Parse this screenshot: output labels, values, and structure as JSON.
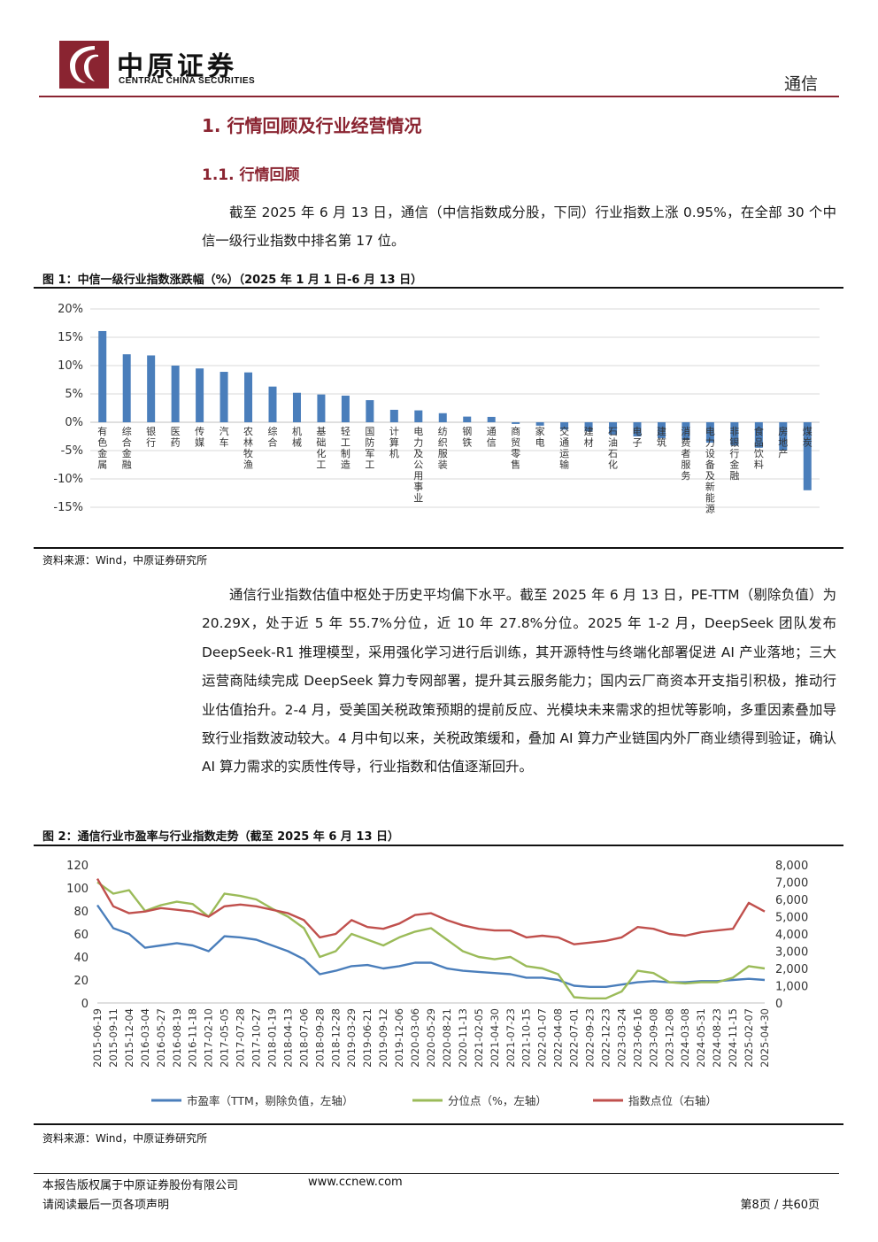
{
  "header": {
    "brand_cn": "中原证券",
    "brand_en": "CENTRAL CHINA SECURITIES",
    "section": "通信",
    "accent_color": "#8a2431"
  },
  "heading1": "1. 行情回顾及行业经营情况",
  "heading2": "1.1. 行情回顾",
  "paragraph1": "截至 2025 年 6 月 13 日，通信（中信指数成分股，下同）行业指数上涨 0.95%，在全部 30 个中信一级行业指数中排名第 17 位。",
  "figure1": {
    "title": "图 1：中信一级行业指数涨跌幅（%）（2025 年 1 月 1 日-6 月 13 日）",
    "source": "资料来源：Wind，中原证券研究所"
  },
  "paragraph2": "通信行业指数估值中枢处于历史平均偏下水平。截至 2025 年 6 月 13 日，PE-TTM（剔除负值）为 20.29X，处于近 5 年 55.7%分位，近 10 年 27.8%分位。2025 年 1-2 月，DeepSeek 团队发布 DeepSeek-R1 推理模型，采用强化学习进行后训练，其开源特性与终端化部署促进 AI 产业落地；三大运营商陆续完成 DeepSeek 算力专网部署，提升其云服务能力；国内云厂商资本开支指引积极，推动行业估值抬升。2-4 月，受美国关税政策预期的提前反应、光模块未来需求的担忧等影响，多重因素叠加导致行业指数波动较大。4 月中旬以来，关税政策缓和，叠加 AI 算力产业链国内外厂商业绩得到验证，确认 AI 算力需求的实质性传导，行业指数和估值逐渐回升。",
  "figure2": {
    "title": "图 2：通信行业市盈率与行业指数走势（截至 2025 年 6 月 13 日）",
    "source": "资料来源：Wind，中原证券研究所"
  },
  "footer": {
    "copyright": "本报告版权属于中原证券股份有限公司",
    "website": "www.ccnew.com",
    "disclaimer": "请阅读最后一页各项声明",
    "page": "第8页  /  共60页"
  },
  "chart_data": [
    {
      "type": "bar",
      "ylim": [
        -15,
        20
      ],
      "yticks": [
        "20%",
        "15%",
        "10%",
        "5%",
        "0%",
        "-5%",
        "-10%",
        "-15%"
      ],
      "grid": true,
      "bar_color": "#4a7ebb",
      "categories": [
        "有色金属",
        "综合金融",
        "银行",
        "医药",
        "传媒",
        "汽车",
        "农林牧渔",
        "综合",
        "机械",
        "基础化工",
        "轻工制造",
        "国防军工",
        "计算机",
        "电力及公用事业",
        "纺织服装",
        "钢铁",
        "通信",
        "商贸零售",
        "家电",
        "交通运输",
        "建材",
        "石油石化",
        "电子",
        "建筑",
        "消费者服务",
        "电力设备及新能源",
        "非银行金融",
        "食品饮料",
        "房地产",
        "煤炭"
      ],
      "values": [
        16.1,
        12.0,
        11.8,
        10.0,
        9.5,
        8.9,
        8.8,
        6.3,
        5.2,
        4.9,
        4.7,
        3.9,
        2.2,
        2.1,
        1.6,
        1.0,
        0.95,
        -0.3,
        -0.6,
        -1.3,
        -1.6,
        -2.2,
        -2.5,
        -2.8,
        -3.1,
        -3.6,
        -4.1,
        -4.5,
        -5.0,
        -12.0
      ]
    },
    {
      "type": "line",
      "ylim_left": [
        0,
        120
      ],
      "yticks_left": [
        "0",
        "20",
        "40",
        "60",
        "80",
        "100",
        "120"
      ],
      "ylim_right": [
        0,
        8000
      ],
      "yticks_right": [
        "0",
        "1,000",
        "2,000",
        "3,000",
        "4,000",
        "5,000",
        "6,000",
        "7,000",
        "8,000"
      ],
      "x": [
        "2015-06-19",
        "2015-09-11",
        "2015-12-04",
        "2016-03-04",
        "2016-05-27",
        "2016-08-19",
        "2016-11-18",
        "2017-02-10",
        "2017-05-05",
        "2017-07-28",
        "2017-10-27",
        "2018-01-19",
        "2018-04-13",
        "2018-07-06",
        "2018-09-28",
        "2018-12-28",
        "2019-03-29",
        "2019-06-21",
        "2019-09-12",
        "2019-12-06",
        "2020-03-06",
        "2020-05-29",
        "2020-08-21",
        "2020-11-13",
        "2021-02-05",
        "2021-04-30",
        "2021-07-23",
        "2021-10-15",
        "2022-01-07",
        "2022-04-08",
        "2022-07-01",
        "2022-09-23",
        "2022-12-23",
        "2023-03-24",
        "2023-06-16",
        "2023-09-08",
        "2023-12-08",
        "2024-03-08",
        "2024-05-31",
        "2024-08-23",
        "2024-11-15",
        "2025-02-07",
        "2025-04-30"
      ],
      "series": [
        {
          "name": "市盈率（TTM，剔除负值，左轴）",
          "axis": "left",
          "color": "#4a7ebb",
          "values": [
            85,
            65,
            60,
            48,
            50,
            52,
            50,
            45,
            58,
            57,
            55,
            50,
            45,
            38,
            25,
            28,
            32,
            33,
            30,
            32,
            35,
            35,
            30,
            28,
            27,
            26,
            25,
            22,
            22,
            20,
            15,
            14,
            14,
            16,
            18,
            19,
            18,
            18,
            19,
            19,
            20,
            21,
            20
          ]
        },
        {
          "name": "分位点（%，左轴）",
          "axis": "left",
          "color": "#9bbb59",
          "values": [
            105,
            95,
            98,
            80,
            85,
            88,
            86,
            75,
            95,
            93,
            90,
            82,
            75,
            65,
            40,
            45,
            60,
            55,
            50,
            57,
            62,
            65,
            55,
            45,
            40,
            38,
            40,
            32,
            30,
            25,
            5,
            4,
            4,
            10,
            28,
            26,
            18,
            17,
            18,
            18,
            22,
            32,
            30
          ]
        },
        {
          "name": "指数点位（右轴）",
          "axis": "right",
          "color": "#c0504d",
          "values": [
            7200,
            5600,
            5200,
            5300,
            5500,
            5400,
            5300,
            5000,
            5600,
            5700,
            5600,
            5400,
            5200,
            4800,
            3800,
            4000,
            4800,
            4400,
            4300,
            4600,
            5100,
            5200,
            4800,
            4500,
            4300,
            4200,
            4200,
            3800,
            3900,
            3800,
            3400,
            3500,
            3600,
            3800,
            4400,
            4300,
            4000,
            3900,
            4100,
            4200,
            4300,
            5800,
            5300
          ]
        }
      ]
    }
  ]
}
